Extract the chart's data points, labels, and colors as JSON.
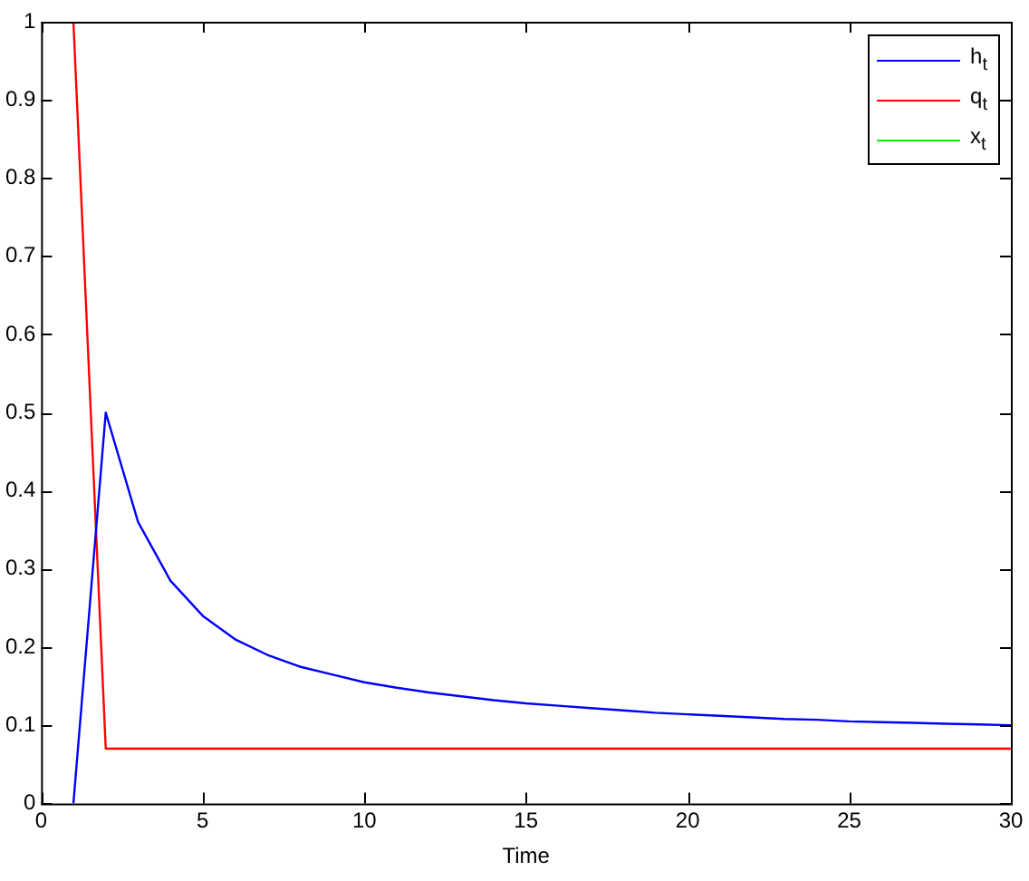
{
  "chart_data": {
    "type": "line",
    "xlabel": "Time",
    "x": [
      1,
      2,
      3,
      4,
      5,
      6,
      7,
      8,
      9,
      10,
      11,
      12,
      13,
      14,
      15,
      16,
      17,
      18,
      19,
      20,
      21,
      22,
      23,
      24,
      25,
      26,
      27,
      28,
      29,
      30
    ],
    "series": [
      {
        "name": "h$_{t}$",
        "color": "#0000ff",
        "values": [
          0,
          0.5,
          0.36,
          0.285,
          0.24,
          0.21,
          0.19,
          0.175,
          0.165,
          0.155,
          0.148,
          0.142,
          0.137,
          0.132,
          0.128,
          0.125,
          0.122,
          0.119,
          0.116,
          0.114,
          0.112,
          0.11,
          0.108,
          0.107,
          0.105,
          0.104,
          0.103,
          0.102,
          0.101,
          0.1
        ]
      },
      {
        "name": "q$_{t}$",
        "color": "#ff0000",
        "values": [
          1,
          0.07,
          0.07,
          0.07,
          0.07,
          0.07,
          0.07,
          0.07,
          0.07,
          0.07,
          0.07,
          0.07,
          0.07,
          0.07,
          0.07,
          0.07,
          0.07,
          0.07,
          0.07,
          0.07,
          0.07,
          0.07,
          0.07,
          0.07,
          0.07,
          0.07,
          0.07,
          0.07,
          0.07,
          0.07
        ]
      },
      {
        "name": "x$_{t}$",
        "color": "#00ff00",
        "values": [
          null,
          null,
          null,
          null,
          null,
          null,
          null,
          null,
          null,
          null,
          null,
          null,
          null,
          null,
          null,
          null,
          null,
          null,
          null,
          null,
          null,
          null,
          null,
          null,
          null,
          null,
          null,
          null,
          null,
          null
        ]
      }
    ],
    "xlim": [
      0,
      30
    ],
    "xticks": [
      0,
      5,
      10,
      15,
      20,
      25,
      30
    ],
    "ylim": [
      0,
      1
    ],
    "yticks": [
      0,
      0.1,
      0.2,
      0.3,
      0.4,
      0.5,
      0.6,
      0.7,
      0.8,
      0.9,
      1
    ],
    "grid": false,
    "legend": "top right",
    "marker": "none",
    "line_style": "solid"
  }
}
